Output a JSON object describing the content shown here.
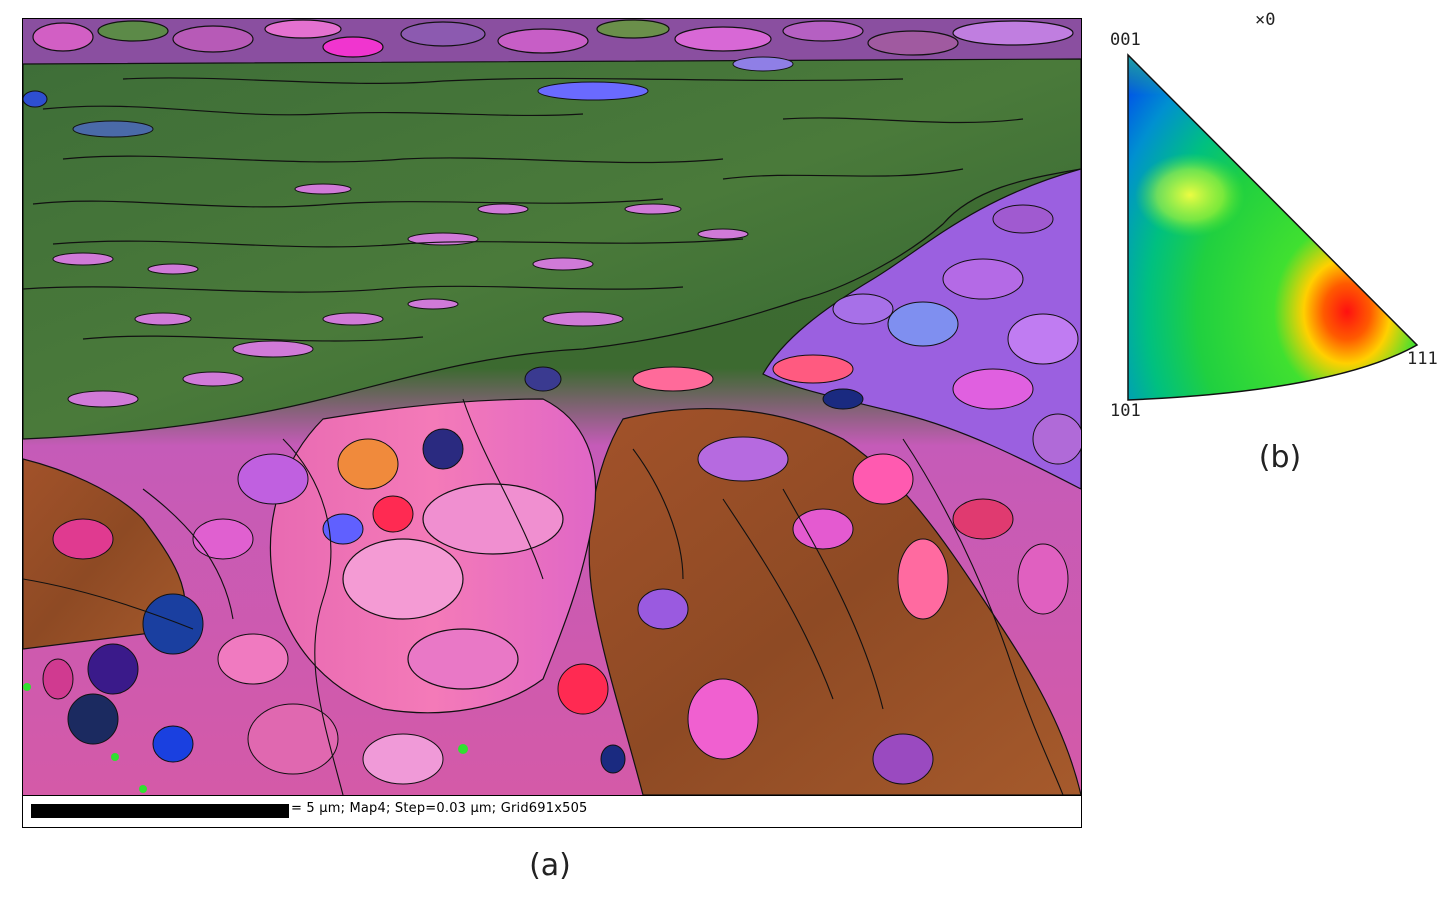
{
  "figure": {
    "panel_a_label": "(a)",
    "panel_b_label": "(b)"
  },
  "map": {
    "scale_text": "= 5 µm; Map4; Step=0.03 µm; Grid691x505",
    "scale_length": "5 µm"
  },
  "ipf": {
    "corner_001": "001",
    "corner_101": "101",
    "corner_111": "111",
    "marker": "×0"
  },
  "colors": {
    "ipf_001": "#ff0000",
    "ipf_101": "#0040ff",
    "ipf_111": "#00ff00",
    "grain_boundary": "#111111"
  }
}
